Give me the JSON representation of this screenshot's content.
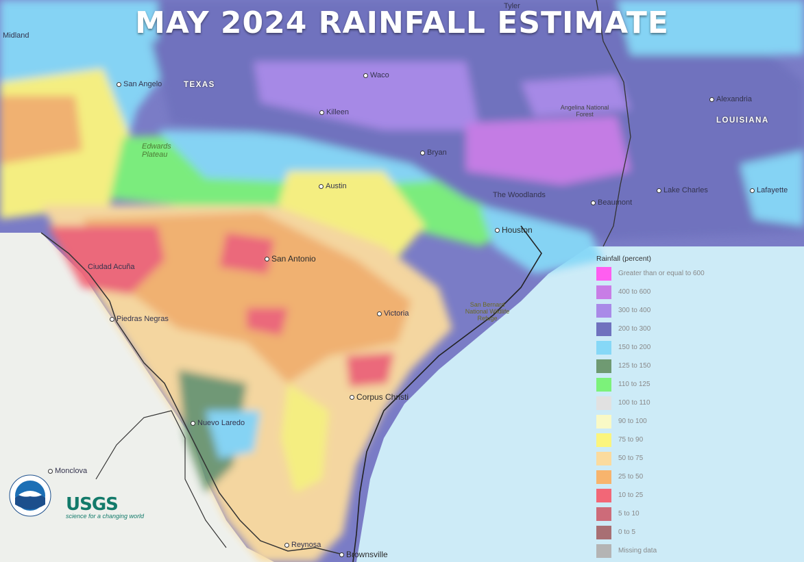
{
  "title": "MAY 2024 RAINFALL ESTIMATE",
  "states": [
    "TEXAS",
    "LOUISIANA"
  ],
  "regions": [
    "Edwards Plateau",
    "Angelina National Forest",
    "San Bernard National Wildlife Refuge"
  ],
  "cities": [
    "Tyler",
    "Midland",
    "San Angelo",
    "Waco",
    "Killeen",
    "Alexandria",
    "Bryan",
    "Austin",
    "The Woodlands",
    "Lake Charles",
    "Lafayette",
    "Beaumont",
    "Houston",
    "San Antonio",
    "Ciudad Acuña",
    "Victoria",
    "Piedras Negras",
    "Corpus Christi",
    "Nuevo Laredo",
    "Monclova",
    "Reynosa",
    "Brownsville"
  ],
  "legend": {
    "title": "Rainfall (percent)",
    "items": [
      {
        "label": "Greater than or equal to 600",
        "color": "#ff5ef0"
      },
      {
        "label": "400 to 600",
        "color": "#c87de6"
      },
      {
        "label": "300 to 400",
        "color": "#a98ae8"
      },
      {
        "label": "200 to 300",
        "color": "#7072be"
      },
      {
        "label": "150 to 200",
        "color": "#86d8f7"
      },
      {
        "label": "125 to 150",
        "color": "#6f9a72"
      },
      {
        "label": "110 to 125",
        "color": "#7cf27a"
      },
      {
        "label": "100 to 110",
        "color": "#e1e1e1"
      },
      {
        "label": "90 to 100",
        "color": "#f9f9c6"
      },
      {
        "label": "75 to 90",
        "color": "#fbf57e"
      },
      {
        "label": "50 to 75",
        "color": "#fbdb9e"
      },
      {
        "label": "25 to 50",
        "color": "#f7b46d"
      },
      {
        "label": "10 to 25",
        "color": "#f26777"
      },
      {
        "label": "5 to 10",
        "color": "#cd6b79"
      },
      {
        "label": "0 to 5",
        "color": "#a86f73"
      },
      {
        "label": "Missing data",
        "color": "#b4b4b4"
      }
    ]
  },
  "logos": [
    "NOAA",
    "USGS"
  ],
  "logo_text": {
    "usgs": "USGS",
    "usgs_tagline": "science for a changing world"
  }
}
